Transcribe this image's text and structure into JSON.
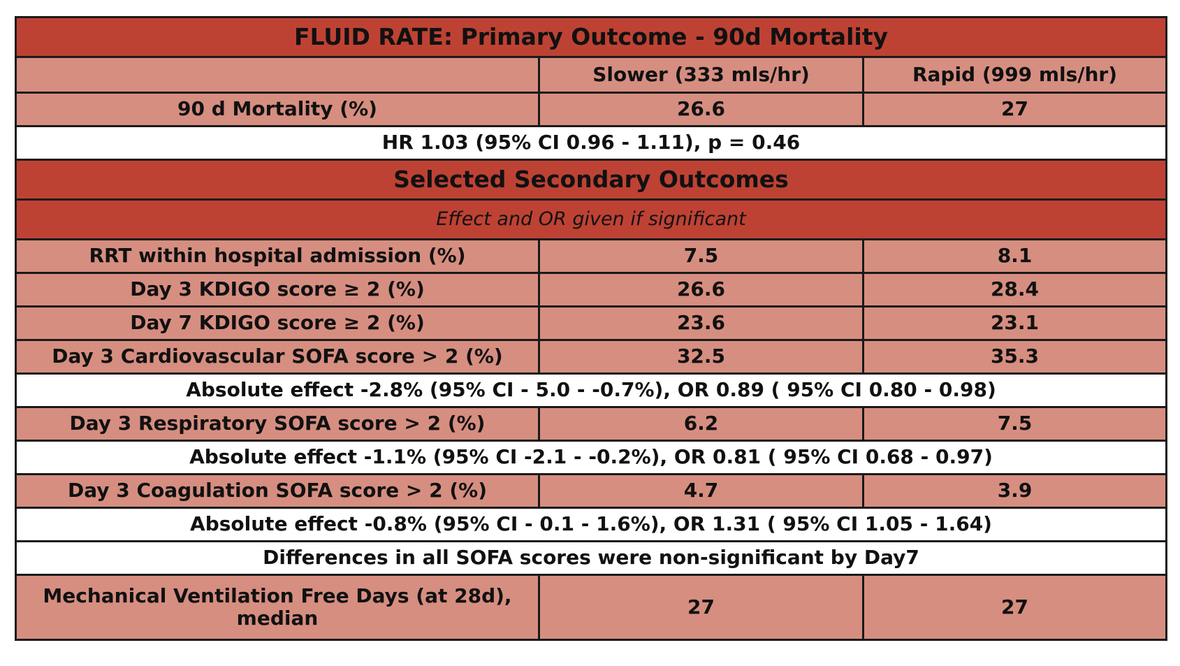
{
  "title": "FLUID RATE: Primary Outcome - 90d Mortality",
  "columns": [
    "",
    "Slower (333 mls/hr)",
    "Rapid (999 mls/hr)"
  ],
  "primary": {
    "label": "90 d Mortality (%)",
    "slower": "26.6",
    "rapid": "27",
    "note": "HR 1.03 (95% CI 0.96 - 1.11), p = 0.46"
  },
  "secondary": {
    "title": "Selected Secondary Outcomes",
    "subtitle": "Effect and OR given if significant",
    "rows": [
      {
        "label": "RRT within hospital admission (%)",
        "slower": "7.5",
        "rapid": "8.1"
      },
      {
        "label": "Day 3 KDIGO score  ≥ 2 (%)",
        "slower": "26.6",
        "rapid": "28.4"
      },
      {
        "label": "Day 7 KDIGO score ≥ 2 (%)",
        "slower": "23.6",
        "rapid": "23.1"
      },
      {
        "label": "Day 3 Cardiovascular SOFA score > 2 (%)",
        "slower": "32.5",
        "rapid": "35.3"
      },
      {
        "label": "Day 3 Respiratory SOFA score > 2 (%)",
        "slower": "6.2",
        "rapid": "7.5"
      },
      {
        "label": "Day 3 Coagulation SOFA score > 2 (%)",
        "slower": "4.7",
        "rapid": "3.9"
      },
      {
        "label": "Mechanical Ventilation Free Days (at 28d), median",
        "slower": "27",
        "rapid": "27"
      }
    ],
    "notes": [
      "Absolute effect -2.8% (95% CI   - 5.0 - -0.7%), OR 0.89 ( 95% CI 0.80 - 0.98)",
      "Absolute effect -1.1% (95% CI   -2.1 - -0.2%), OR 0.81 ( 95% CI 0.68 - 0.97)",
      "Absolute effect -0.8% (95% CI   - 0.1 - 1.6%), OR 1.31 ( 95% CI 1.05 - 1.64)",
      "Differences in all SOFA scores were non-significant by Day7"
    ]
  },
  "colors": {
    "header_bg": "#be4234",
    "row_bg": "#d68e80",
    "note_bg": "#ffffff",
    "border": "#1a1a1a"
  }
}
